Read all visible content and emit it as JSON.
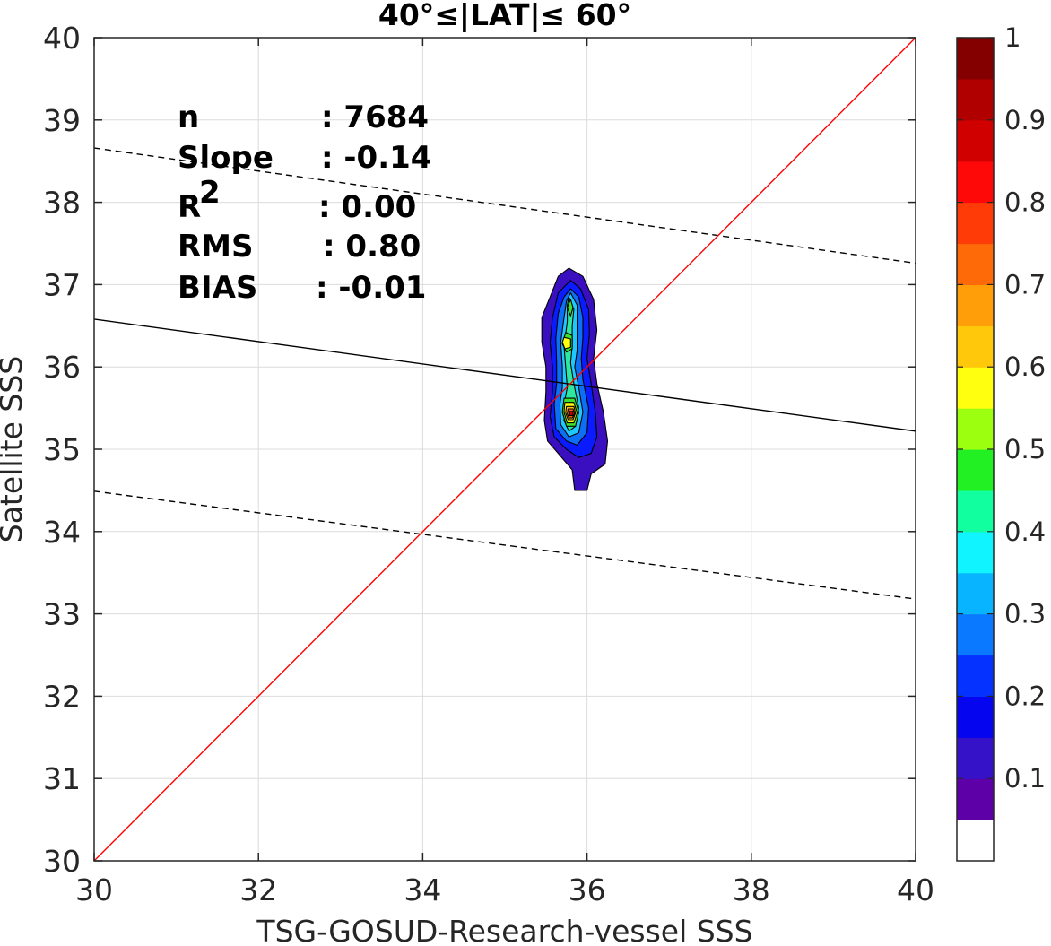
{
  "chart_data": {
    "type": "contour-scatter",
    "title": "40°≤|LAT|≤ 60°",
    "xlabel": "TSG-GOSUD-Research-vessel SSS",
    "ylabel": "Satellite SSS",
    "xlim": [
      30,
      40
    ],
    "ylim": [
      30,
      40
    ],
    "xticks": [
      30,
      32,
      34,
      36,
      38,
      40
    ],
    "yticks": [
      30,
      31,
      32,
      33,
      34,
      35,
      36,
      37,
      38,
      39,
      40
    ],
    "grid": true,
    "stats": [
      {
        "label": "n",
        "value": ": 7684"
      },
      {
        "label": "Slope",
        "value": ": -0.14"
      },
      {
        "label": "R",
        "sup": "2",
        "value": ": 0.00"
      },
      {
        "label": "RMS",
        "value": ": 0.80"
      },
      {
        "label": "BIAS",
        "value": ": -0.01"
      }
    ],
    "lines": {
      "one_to_one": {
        "color": "#ff0000",
        "points": [
          [
            30,
            30
          ],
          [
            40,
            40
          ]
        ]
      },
      "regression": {
        "color": "#000000",
        "style": "solid",
        "points": [
          [
            30,
            36.58
          ],
          [
            40,
            35.22
          ]
        ]
      },
      "upper_bound": {
        "color": "#000000",
        "style": "dashed",
        "points": [
          [
            30,
            38.66
          ],
          [
            40,
            37.26
          ]
        ]
      },
      "lower_bound": {
        "color": "#000000",
        "style": "dashed",
        "points": [
          [
            30,
            34.49
          ],
          [
            40,
            33.18
          ]
        ]
      }
    },
    "density_contours": [
      {
        "level": 0.05,
        "color": "#3a0fbf",
        "points": [
          [
            35.78,
            37.2
          ],
          [
            35.95,
            37.1
          ],
          [
            36.08,
            36.82
          ],
          [
            36.12,
            36.45
          ],
          [
            36.08,
            36.1
          ],
          [
            36.12,
            35.8
          ],
          [
            36.2,
            35.45
          ],
          [
            36.25,
            35.1
          ],
          [
            36.22,
            34.82
          ],
          [
            36.05,
            34.7
          ],
          [
            36.0,
            34.5
          ],
          [
            35.85,
            34.5
          ],
          [
            35.82,
            34.75
          ],
          [
            35.65,
            34.95
          ],
          [
            35.52,
            35.1
          ],
          [
            35.48,
            35.35
          ],
          [
            35.5,
            35.7
          ],
          [
            35.5,
            36.0
          ],
          [
            35.45,
            36.3
          ],
          [
            35.45,
            36.6
          ],
          [
            35.55,
            36.85
          ],
          [
            35.65,
            37.1
          ]
        ]
      },
      {
        "level": 0.15,
        "color": "#0a1cff",
        "points": [
          [
            35.8,
            37.05
          ],
          [
            35.92,
            36.95
          ],
          [
            36.02,
            36.7
          ],
          [
            36.03,
            36.4
          ],
          [
            36.0,
            36.1
          ],
          [
            36.05,
            35.8
          ],
          [
            36.1,
            35.45
          ],
          [
            36.12,
            35.15
          ],
          [
            36.05,
            34.95
          ],
          [
            35.9,
            34.9
          ],
          [
            35.75,
            35.0
          ],
          [
            35.6,
            35.15
          ],
          [
            35.55,
            35.4
          ],
          [
            35.58,
            35.7
          ],
          [
            35.58,
            36.0
          ],
          [
            35.55,
            36.3
          ],
          [
            35.58,
            36.6
          ],
          [
            35.65,
            36.9
          ]
        ]
      },
      {
        "level": 0.25,
        "color": "#0d6ff5",
        "points": [
          [
            35.8,
            36.95
          ],
          [
            35.9,
            36.85
          ],
          [
            35.95,
            36.6
          ],
          [
            35.95,
            36.35
          ],
          [
            35.93,
            36.1
          ],
          [
            35.95,
            35.85
          ],
          [
            36.02,
            35.5
          ],
          [
            36.0,
            35.2
          ],
          [
            35.88,
            35.05
          ],
          [
            35.75,
            35.1
          ],
          [
            35.62,
            35.25
          ],
          [
            35.6,
            35.55
          ],
          [
            35.63,
            35.8
          ],
          [
            35.63,
            36.05
          ],
          [
            35.62,
            36.35
          ],
          [
            35.65,
            36.65
          ],
          [
            35.72,
            36.85
          ]
        ]
      },
      {
        "level": 0.35,
        "color": "#1ec8ff",
        "points": [
          [
            35.8,
            36.9
          ],
          [
            35.88,
            36.75
          ],
          [
            35.88,
            36.5
          ],
          [
            35.88,
            36.2
          ],
          [
            35.85,
            36.0
          ],
          [
            35.9,
            35.75
          ],
          [
            35.95,
            35.45
          ],
          [
            35.9,
            35.2
          ],
          [
            35.78,
            35.15
          ],
          [
            35.68,
            35.3
          ],
          [
            35.67,
            35.55
          ],
          [
            35.7,
            35.75
          ],
          [
            35.7,
            36.0
          ],
          [
            35.68,
            36.3
          ],
          [
            35.72,
            36.6
          ],
          [
            35.75,
            36.8
          ]
        ]
      },
      {
        "level": 0.45,
        "color": "#2ee8a0",
        "points": [
          [
            35.78,
            36.85
          ],
          [
            35.84,
            36.7
          ],
          [
            35.82,
            36.5
          ],
          [
            35.82,
            36.25
          ],
          [
            35.8,
            36.05
          ],
          [
            35.84,
            35.8
          ],
          [
            35.9,
            35.5
          ],
          [
            35.86,
            35.28
          ],
          [
            35.78,
            35.22
          ],
          [
            35.72,
            35.35
          ],
          [
            35.72,
            35.55
          ],
          [
            35.76,
            35.75
          ],
          [
            35.74,
            36.0
          ],
          [
            35.72,
            36.25
          ],
          [
            35.76,
            36.55
          ],
          [
            35.76,
            36.75
          ]
        ]
      },
      {
        "level": 0.55,
        "color": "#3de02f",
        "points": [
          [
            35.8,
            36.82
          ],
          [
            35.83,
            36.72
          ],
          [
            35.8,
            36.62
          ],
          [
            35.76,
            36.72
          ],
          [
            35.8,
            36.82
          ]
        ]
      },
      {
        "level": 0.55,
        "color": "#3de02f",
        "points": [
          [
            35.74,
            36.42
          ],
          [
            35.82,
            36.38
          ],
          [
            35.82,
            36.22
          ],
          [
            35.75,
            36.18
          ],
          [
            35.7,
            36.28
          ]
        ]
      },
      {
        "level": 0.55,
        "color": "#3de02f",
        "points": [
          [
            35.72,
            35.62
          ],
          [
            35.85,
            35.62
          ],
          [
            35.9,
            35.45
          ],
          [
            35.86,
            35.28
          ],
          [
            35.75,
            35.28
          ],
          [
            35.7,
            35.45
          ]
        ]
      },
      {
        "level": 0.65,
        "color": "#ffff10",
        "points": [
          [
            35.72,
            36.36
          ],
          [
            35.8,
            36.34
          ],
          [
            35.8,
            36.24
          ],
          [
            35.73,
            36.22
          ],
          [
            35.7,
            36.3
          ]
        ]
      },
      {
        "level": 0.65,
        "color": "#ffff10",
        "points": [
          [
            35.73,
            35.57
          ],
          [
            35.84,
            35.57
          ],
          [
            35.88,
            35.44
          ],
          [
            35.84,
            35.32
          ],
          [
            35.76,
            35.32
          ],
          [
            35.72,
            35.45
          ]
        ]
      },
      {
        "level": 0.75,
        "color": "#ffc410",
        "points": [
          [
            35.75,
            35.52
          ],
          [
            35.84,
            35.52
          ],
          [
            35.86,
            35.44
          ],
          [
            35.83,
            35.36
          ],
          [
            35.77,
            35.36
          ],
          [
            35.74,
            35.44
          ]
        ]
      },
      {
        "level": 0.85,
        "color": "#ff5a10",
        "points": [
          [
            35.77,
            35.49
          ],
          [
            35.83,
            35.49
          ],
          [
            35.85,
            35.43
          ],
          [
            35.82,
            35.38
          ],
          [
            35.78,
            35.38
          ],
          [
            35.76,
            35.43
          ]
        ]
      },
      {
        "level": 0.95,
        "color": "#c80000",
        "points": [
          [
            35.79,
            35.46
          ],
          [
            35.83,
            35.46
          ],
          [
            35.83,
            35.41
          ],
          [
            35.79,
            35.41
          ]
        ]
      }
    ],
    "colorbar": {
      "range": [
        0,
        1
      ],
      "ticks": [
        0.1,
        0.2,
        0.3,
        0.4,
        0.5,
        0.6,
        0.7,
        0.8,
        0.9,
        1
      ],
      "tick_labels": [
        "0.1",
        "0.2",
        "0.3",
        "0.4",
        "0.5",
        "0.6",
        "0.7",
        "0.8",
        "0.9",
        "1"
      ],
      "colors": [
        "#ffffff",
        "#5e00a8",
        "#3512c8",
        "#0505ef",
        "#0532ff",
        "#0a78ff",
        "#08b4ff",
        "#10f4ff",
        "#12ffa0",
        "#22f022",
        "#9cff10",
        "#ffff10",
        "#ffc80a",
        "#ff9e08",
        "#ff6a08",
        "#ff3c08",
        "#ff0808",
        "#d00000",
        "#b00000",
        "#840000"
      ]
    }
  }
}
